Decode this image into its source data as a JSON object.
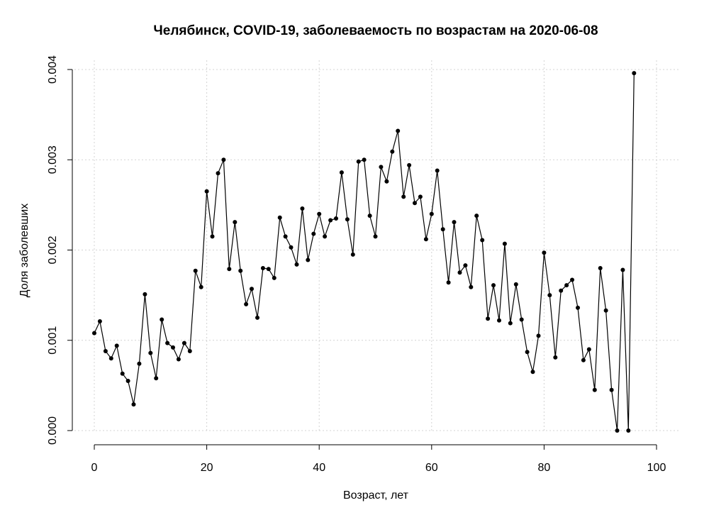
{
  "chart_data": {
    "type": "line",
    "title": "Челябинск, COVID-19, заболеваемость по возрастам на 2020-06-08",
    "xlabel": "Возраст, лет",
    "ylabel": "Доля заболевших",
    "xlim": [
      0,
      100
    ],
    "ylim": [
      0,
      0.004
    ],
    "xticks": [
      0,
      20,
      40,
      60,
      80,
      100
    ],
    "yticks": [
      "0.000",
      "0.001",
      "0.002",
      "0.003",
      "0.004"
    ],
    "grid": true,
    "legend": "none",
    "series": [
      {
        "x": [
          0,
          1,
          2,
          3,
          4,
          5,
          6,
          7,
          8,
          9,
          10,
          11,
          12,
          13,
          14,
          15,
          16,
          17,
          18,
          19,
          20,
          21,
          22,
          23,
          24,
          25,
          26,
          27,
          28,
          29,
          30,
          31,
          32,
          33,
          34,
          35,
          36,
          37,
          38,
          39,
          40,
          41,
          42,
          43,
          44,
          45,
          46,
          47,
          48,
          49,
          50,
          51,
          52,
          53,
          54,
          55,
          56,
          57,
          58,
          59,
          60,
          61,
          62,
          63,
          64,
          65,
          66,
          67,
          68,
          69,
          70,
          71,
          72,
          73,
          74,
          75,
          76,
          77,
          78,
          79,
          80,
          81,
          82,
          83,
          84,
          85,
          86,
          87,
          88,
          89,
          90,
          91,
          92,
          93,
          94,
          95,
          96
        ],
        "y": [
          0.00108,
          0.00121,
          0.00088,
          0.0008,
          0.00094,
          0.00063,
          0.00055,
          0.00029,
          0.00074,
          0.00151,
          0.00086,
          0.00058,
          0.00123,
          0.00097,
          0.00092,
          0.00079,
          0.00097,
          0.00088,
          0.00177,
          0.00159,
          0.00265,
          0.00215,
          0.00285,
          0.003,
          0.00179,
          0.00231,
          0.00177,
          0.0014,
          0.00157,
          0.00125,
          0.0018,
          0.00179,
          0.00169,
          0.00236,
          0.00215,
          0.00203,
          0.00184,
          0.00246,
          0.00189,
          0.00218,
          0.0024,
          0.00215,
          0.00233,
          0.00235,
          0.00286,
          0.00234,
          0.00195,
          0.00298,
          0.003,
          0.00238,
          0.00215,
          0.00292,
          0.00276,
          0.00309,
          0.00332,
          0.00259,
          0.00294,
          0.00252,
          0.00259,
          0.00212,
          0.0024,
          0.00288,
          0.00223,
          0.00164,
          0.00231,
          0.00175,
          0.00183,
          0.00159,
          0.00238,
          0.00211,
          0.00124,
          0.00161,
          0.00122,
          0.00207,
          0.00119,
          0.00162,
          0.00123,
          0.00087,
          0.00065,
          0.00105,
          0.00197,
          0.0015,
          0.00081,
          0.00155,
          0.00161,
          0.00167,
          0.00136,
          0.00078,
          0.0009,
          0.00045,
          0.0018,
          0.00133,
          0.00045,
          0.0,
          0.00178,
          0.0,
          0.00396
        ]
      }
    ]
  }
}
